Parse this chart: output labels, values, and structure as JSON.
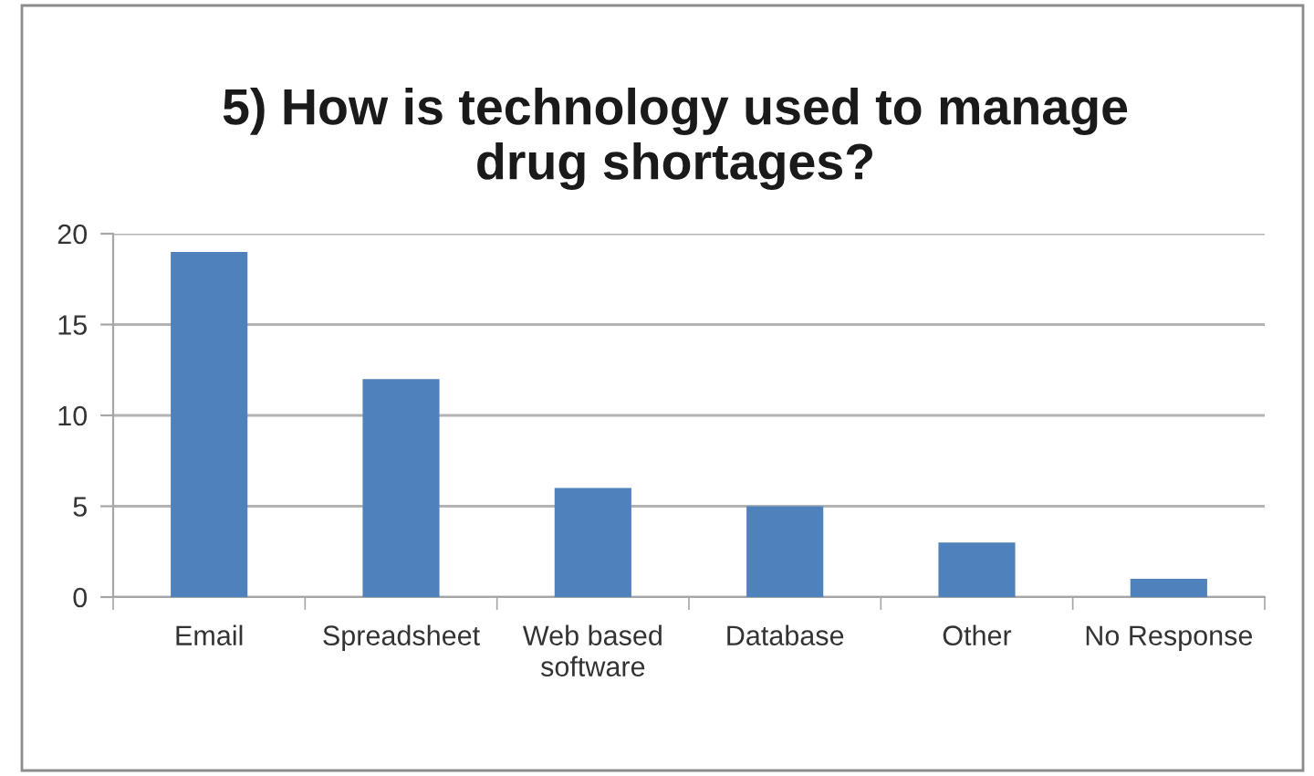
{
  "chart_data": {
    "type": "bar",
    "title": "5) How is technology used to manage\ndrug shortages?",
    "categories": [
      "Email",
      "Spreadsheet",
      "Web based\nsoftware",
      "Database",
      "Other",
      "No Response"
    ],
    "values": [
      19,
      12,
      6,
      5,
      3,
      1
    ],
    "color": "#4f81bd",
    "ylim": [
      0,
      20
    ],
    "yticks": [
      0,
      5,
      10,
      15,
      20
    ],
    "grid": "y",
    "legend": false
  }
}
